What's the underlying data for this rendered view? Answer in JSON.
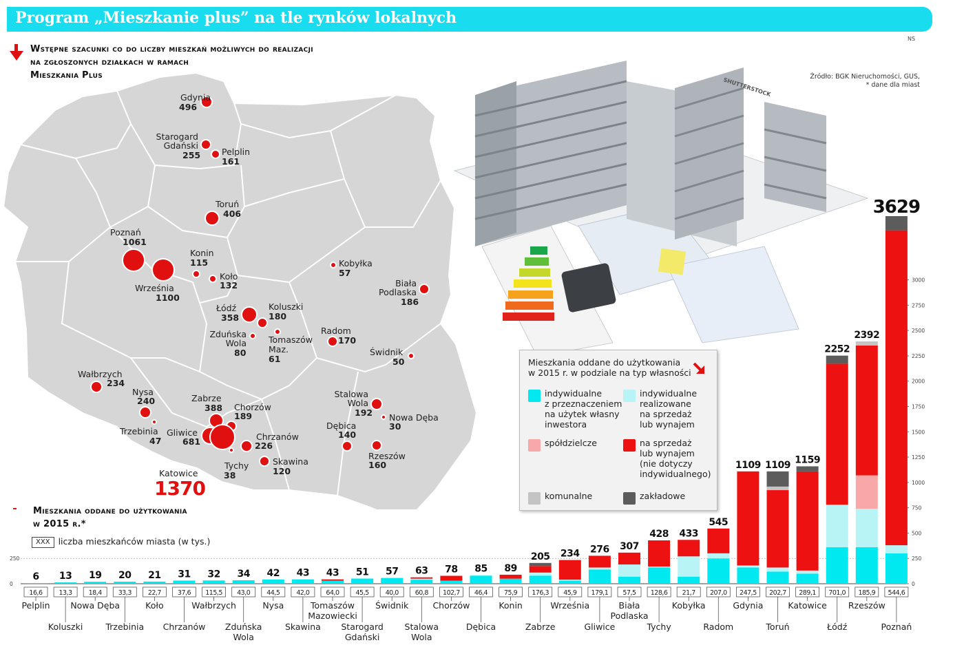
{
  "title": "Program „Mieszkanie plus” na tle rynków lokalnych",
  "ns": "NS",
  "source_line1": "Źródło: BGK Nieruchomości, GUS,",
  "source_line2": "* dane dla miast",
  "watermark": "SHUTTERSTOCK",
  "map_heading": [
    "Wstępne szacunki co do liczby mieszkań możliwych do realizacji",
    "na zgłoszonych działkach w ramach",
    "Mieszkania Plus"
  ],
  "bar_heading": [
    "Mieszkania oddane do użytkowania",
    "w 2015 r.*"
  ],
  "population_legend": {
    "box": "XXX",
    "label": "liczba mieszkańców miasta (w tys.)"
  },
  "legend": {
    "title": [
      "Mieszkania oddane do użytkowania",
      "w 2015 r. w podziale na typ własności"
    ],
    "items": [
      {
        "color": "#00e8f0",
        "lines": [
          "indywidualne",
          "z przeznaczeniem",
          "na użytek własny",
          "inwestora"
        ]
      },
      {
        "color": "#b8f4f6",
        "lines": [
          "indywidualne",
          "realizowane",
          "na sprzedaż",
          "lub wynajem"
        ]
      },
      {
        "color": "#f8a8a8",
        "lines": [
          "spółdzielcze"
        ]
      },
      {
        "color": "#ee1111",
        "lines": [
          "na sprzedaż",
          "lub wynajem",
          "(nie dotyczy",
          "indywidualnego)"
        ]
      },
      {
        "color": "#c4c4c4",
        "lines": [
          "komunalne"
        ]
      },
      {
        "color": "#5c5c5c",
        "lines": [
          "zakładowe"
        ]
      }
    ]
  },
  "map_cities": [
    {
      "name": "Gdynia",
      "value": "496"
    },
    {
      "name": "Starogard Gdański",
      "value": "255"
    },
    {
      "name": "Pelplin",
      "value": "161"
    },
    {
      "name": "Toruń",
      "value": "406"
    },
    {
      "name": "Poznań",
      "value": "1061"
    },
    {
      "name": "Września",
      "value": "1100"
    },
    {
      "name": "Konin",
      "value": "115"
    },
    {
      "name": "Koło",
      "value": "132"
    },
    {
      "name": "Kobyłka",
      "value": "57"
    },
    {
      "name": "Biała Podlaska",
      "value": "186"
    },
    {
      "name": "Łódź",
      "value": "358"
    },
    {
      "name": "Koluszki",
      "value": "180"
    },
    {
      "name": "Zduńska Wola",
      "value": "80"
    },
    {
      "name": "Tomaszów Maz.",
      "value": "61"
    },
    {
      "name": "Radom",
      "value": "170"
    },
    {
      "name": "Świdnik",
      "value": "50"
    },
    {
      "name": "Wałbrzych",
      "value": "234"
    },
    {
      "name": "Nysa",
      "value": "240"
    },
    {
      "name": "Trzebinia",
      "value": "47"
    },
    {
      "name": "Zabrze",
      "value": "388"
    },
    {
      "name": "Chorzów",
      "value": "189"
    },
    {
      "name": "Gliwice",
      "value": "681"
    },
    {
      "name": "Chrzanów",
      "value": "226"
    },
    {
      "name": "Katowice",
      "value": "1370"
    },
    {
      "name": "Tychy",
      "value": "38"
    },
    {
      "name": "Skawina",
      "value": "120"
    },
    {
      "name": "Stalowa Wola",
      "value": "192"
    },
    {
      "name": "Nowa Dęba",
      "value": "30"
    },
    {
      "name": "Dębica",
      "value": "140"
    },
    {
      "name": "Rzeszów",
      "value": "160"
    }
  ],
  "chart_data": {
    "type": "bar",
    "stacked": true,
    "ylim": [
      0,
      3629
    ],
    "yticks": [
      0,
      250,
      500,
      750,
      1000,
      1250,
      1500,
      1750,
      2000,
      2250,
      2500,
      2750,
      3000
    ],
    "categories": [
      "Pelplin",
      "Koluszki",
      "Nowa Dęba",
      "Trzebinia",
      "Koło",
      "Chrzanów",
      "Wałbrzych",
      "Zduńska Wola",
      "Nysa",
      "Skawina",
      "Tomaszów Mazowiecki",
      "Starogard Gdański",
      "Świdnik",
      "Stalowa Wola",
      "Chorzów",
      "Dębica",
      "Konin",
      "Zabrze",
      "Września",
      "Gliwice",
      "Biała Podlaska",
      "Tychy",
      "Kobyłka",
      "Radom",
      "Gdynia",
      "Toruń",
      "Katowice",
      "Łódź",
      "Rzeszów",
      "Poznań"
    ],
    "totals": [
      6,
      13,
      19,
      20,
      21,
      31,
      32,
      34,
      42,
      43,
      43,
      51,
      57,
      63,
      78,
      85,
      89,
      205,
      234,
      276,
      307,
      428,
      433,
      545,
      1109,
      1109,
      1159,
      2252,
      2392,
      3629
    ],
    "population": [
      "16,6",
      "13,3",
      "18,4",
      "33,3",
      "22,7",
      "37,6",
      "115,5",
      "43,0",
      "44,5",
      "42,0",
      "64,0",
      "45,5",
      "40,0",
      "60,8",
      "102,7",
      "46,4",
      "75,9",
      "176,3",
      "45,9",
      "179,1",
      "57,5",
      "128,6",
      "21,7",
      "207,0",
      "247,5",
      "202,7",
      "289,1",
      "701,0",
      "185,9",
      "544,6"
    ],
    "series": [
      {
        "name": "indywidualne z przeznaczeniem na użytek własny inwestora",
        "values": [
          6,
          13,
          19,
          20,
          21,
          31,
          32,
          34,
          42,
          43,
          30,
          51,
          57,
          40,
          30,
          80,
          50,
          80,
          30,
          140,
          70,
          160,
          70,
          250,
          160,
          120,
          100,
          360,
          360,
          300
        ]
      },
      {
        "name": "indywidualne realizowane na sprzedaż lub wynajem",
        "values": [
          0,
          0,
          0,
          0,
          0,
          0,
          0,
          0,
          0,
          0,
          0,
          0,
          0,
          10,
          0,
          5,
          0,
          30,
          10,
          20,
          120,
          10,
          200,
          50,
          20,
          40,
          30,
          420,
          380,
          80
        ]
      },
      {
        "name": "spółdzielcze",
        "values": [
          0,
          0,
          0,
          0,
          0,
          0,
          0,
          0,
          0,
          0,
          0,
          0,
          0,
          0,
          0,
          0,
          0,
          0,
          0,
          0,
          0,
          0,
          0,
          0,
          0,
          0,
          0,
          0,
          330,
          0
        ]
      },
      {
        "name": "na sprzedaż lub wynajem (nie dotyczy indywidualnego)",
        "values": [
          0,
          0,
          0,
          0,
          0,
          0,
          0,
          0,
          0,
          0,
          13,
          0,
          0,
          13,
          48,
          0,
          39,
          65,
          194,
          116,
          117,
          258,
          163,
          245,
          929,
          764,
          979,
          1392,
          1282,
          3109
        ]
      },
      {
        "name": "komunalne",
        "values": [
          0,
          0,
          0,
          0,
          0,
          0,
          0,
          0,
          0,
          0,
          0,
          0,
          0,
          0,
          0,
          0,
          0,
          0,
          0,
          0,
          0,
          0,
          0,
          0,
          0,
          35,
          0,
          0,
          40,
          0
        ]
      },
      {
        "name": "zakładowe",
        "values": [
          0,
          0,
          0,
          0,
          0,
          0,
          0,
          0,
          0,
          0,
          0,
          0,
          0,
          0,
          0,
          0,
          0,
          30,
          0,
          0,
          0,
          0,
          0,
          0,
          0,
          150,
          50,
          80,
          0,
          140
        ]
      }
    ]
  }
}
